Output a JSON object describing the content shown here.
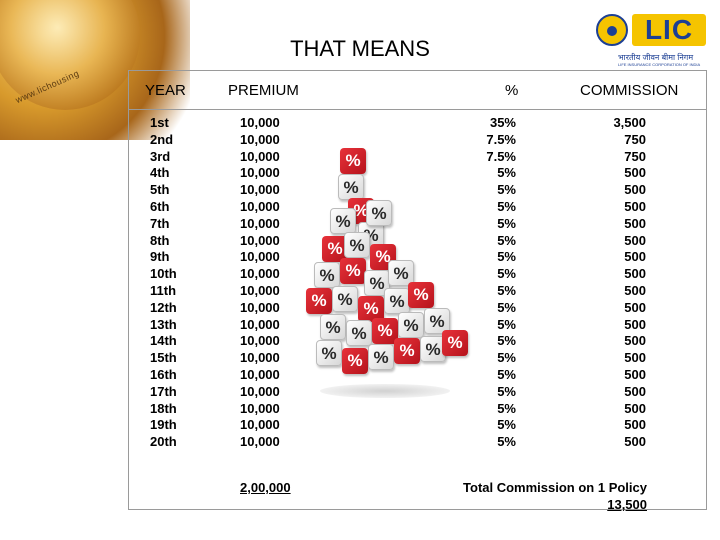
{
  "decor": {
    "globe_url": "www.lichousing"
  },
  "logo": {
    "word": "LIC",
    "hindi": "भारतीय जीवन बीमा निगम",
    "sub": "LIFE INSURANCE CORPORATION OF INDIA"
  },
  "title": "THAT MEANS",
  "headers": {
    "year": "YEAR",
    "premium": "PREMIUM",
    "percent": "%",
    "commission": "COMMISSION"
  },
  "years": [
    "1st",
    "2nd",
    "3rd",
    "4th",
    "5th",
    "6th",
    "7th",
    "8th",
    "9th",
    "10th",
    "11th",
    "12th",
    "13th",
    "14th",
    "15th",
    "16th",
    "17th",
    "18th",
    "19th",
    "20th"
  ],
  "premiums": [
    "10,000",
    "10,000",
    "10,000",
    "10,000",
    "10,000",
    "10,000",
    "10,000",
    "10,000",
    "10,000",
    "10,000",
    "10,000",
    "10,000",
    "10,000",
    "10,000",
    "10,000",
    "10,000",
    "10,000",
    "10,000",
    "10,000",
    "10,000"
  ],
  "percents": [
    "35%",
    "7.5%",
    "7.5%",
    "5%",
    "5%",
    "5%",
    "5%",
    "5%",
    "5%",
    "5%",
    "5%",
    "5%",
    "5%",
    "5%",
    "5%",
    "5%",
    "5%",
    "5%",
    "5%",
    "5%"
  ],
  "commissions": [
    "3,500",
    "750",
    "750",
    "500",
    "500",
    "500",
    "500",
    "500",
    "500",
    "500",
    "500",
    "500",
    "500",
    "500",
    "500",
    "500",
    "500",
    "500",
    "500",
    "500"
  ],
  "totals": {
    "premium": "2,00,000",
    "commission_label": "Total Commission on 1 Policy",
    "commission_value": "13,500"
  },
  "dice_symbol": "%",
  "colors": {
    "die_red": "#d8232b",
    "die_white": "#f2f2f2",
    "logo_yellow": "#f5c400",
    "logo_blue": "#1c3f94",
    "border": "#9a9a9a"
  }
}
